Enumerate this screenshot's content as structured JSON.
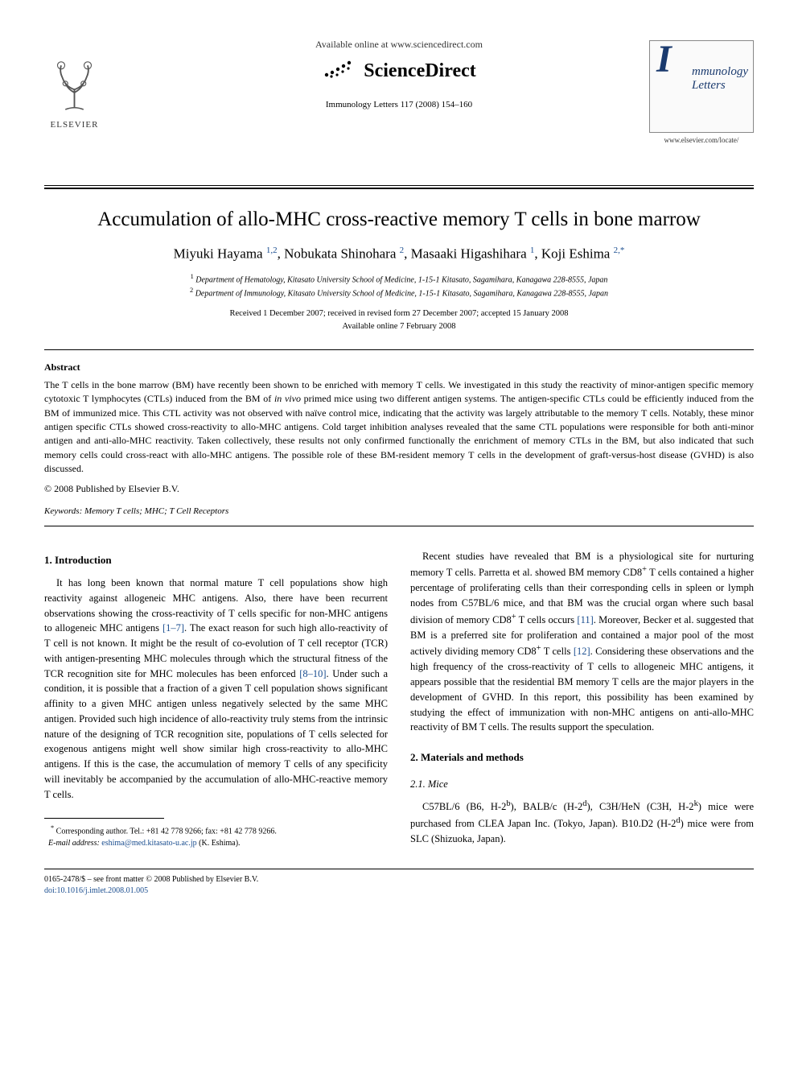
{
  "header": {
    "available_online": "Available online at www.sciencedirect.com",
    "sciencedirect": "ScienceDirect",
    "citation": "Immunology Letters 117 (2008) 154–160",
    "elsevier": "ELSEVIER",
    "journal_logo_text": "mmunology\nLetters",
    "journal_url": "www.elsevier.com/locate/"
  },
  "title": "Accumulation of allo-MHC cross-reactive memory T cells in bone marrow",
  "authors_html": "Miyuki Hayama <sup class='sup-link'>1,2</sup>, Nobukata Shinohara <sup class='sup-link'>2</sup>, Masaaki Higashihara <sup class='sup-link'>1</sup>, Koji Eshima <sup class='sup-link'>2,*</sup>",
  "affiliations": [
    "Department of Hematology, Kitasato University School of Medicine, 1-15-1 Kitasato, Sagamihara, Kanagawa 228-8555, Japan",
    "Department of Immunology, Kitasato University School of Medicine, 1-15-1 Kitasato, Sagamihara, Kanagawa 228-8555, Japan"
  ],
  "dates": {
    "received": "Received 1 December 2007; received in revised form 27 December 2007; accepted 15 January 2008",
    "online": "Available online 7 February 2008"
  },
  "abstract": {
    "heading": "Abstract",
    "text": "The T cells in the bone marrow (BM) have recently been shown to be enriched with memory T cells. We investigated in this study the reactivity of minor-antigen specific memory cytotoxic T lymphocytes (CTLs) induced from the BM of in vivo primed mice using two different antigen systems. The antigen-specific CTLs could be efficiently induced from the BM of immunized mice. This CTL activity was not observed with naïve control mice, indicating that the activity was largely attributable to the memory T cells. Notably, these minor antigen specific CTLs showed cross-reactivity to allo-MHC antigens. Cold target inhibition analyses revealed that the same CTL populations were responsible for both anti-minor antigen and anti-allo-MHC reactivity. Taken collectively, these results not only confirmed functionally the enrichment of memory CTLs in the BM, but also indicated that such memory cells could cross-react with allo-MHC antigens. The possible role of these BM-resident memory T cells in the development of graft-versus-host disease (GVHD) is also discussed.",
    "copyright": "© 2008 Published by Elsevier B.V."
  },
  "keywords": {
    "label": "Keywords:",
    "text": " Memory T cells; MHC; T Cell Receptors"
  },
  "sections": {
    "intro_heading": "1.  Introduction",
    "intro_p1": "It has long been known that normal mature T cell populations show high reactivity against allogeneic MHC antigens. Also, there have been recurrent observations showing the cross-reactivity of T cells specific for non-MHC antigens to allogeneic MHC antigens [1–7]. The exact reason for such high allo-reactivity of T cell is not known. It might be the result of co-evolution of T cell receptor (TCR) with antigen-presenting MHC molecules through which the structural fitness of the TCR recognition site for MHC molecules has been enforced [8–10]. Under such a condition, it is possible that a fraction of a given T cell population shows significant affinity to a given MHC antigen unless negatively selected by the same MHC antigen. Provided such high incidence of allo-reactivity truly stems from the intrinsic nature of the designing of TCR recognition site, populations of T cells selected for exogenous antigens might well show similar high cross-reactivity to allo-MHC antigens. If this is the case, the accumulation of memory T cells of any specificity will inevitably be accompanied by the accumulation of allo-MHC-reactive memory T cells.",
    "intro_p2": "Recent studies have revealed that BM is a physiological site for nurturing memory T cells. Parretta et al. showed BM memory CD8+ T cells contained a higher percentage of proliferating cells than their corresponding cells in spleen or lymph nodes from C57BL/6 mice, and that BM was the crucial organ where such basal division of memory CD8+ T cells occurs [11]. Moreover, Becker et al. suggested that BM is a preferred site for proliferation and contained a major pool of the most actively dividing memory CD8+ T cells [12]. Considering these observations and the high frequency of the cross-reactivity of T cells to allogeneic MHC antigens, it appears possible that the residential BM memory T cells are the major players in the development of GVHD. In this report, this possibility has been examined by studying the effect of immunization with non-MHC antigens on anti-allo-MHC reactivity of BM T cells. The results support the speculation.",
    "methods_heading": "2.  Materials and methods",
    "mice_heading": "2.1.  Mice",
    "mice_p": "C57BL/6 (B6, H-2b), BALB/c (H-2d), C3H/HeN (C3H, H-2k) mice were purchased from CLEA Japan Inc. (Tokyo, Japan). B10.D2 (H-2d) mice were from SLC (Shizuoka, Japan)."
  },
  "footnote": {
    "corr": "Corresponding author. Tel.: +81 42 778 9266; fax: +81 42 778 9266.",
    "email_label": "E-mail address:",
    "email": "eshima@med.kitasato-u.ac.jp",
    "email_who": "(K. Eshima)."
  },
  "footer": {
    "line1": "0165-2478/$ – see front matter © 2008 Published by Elsevier B.V.",
    "doi": "doi:10.1016/j.imlet.2008.01.005"
  },
  "colors": {
    "link": "#1a4d8f",
    "text": "#000000",
    "journal_logo": "#1a3a6e"
  }
}
